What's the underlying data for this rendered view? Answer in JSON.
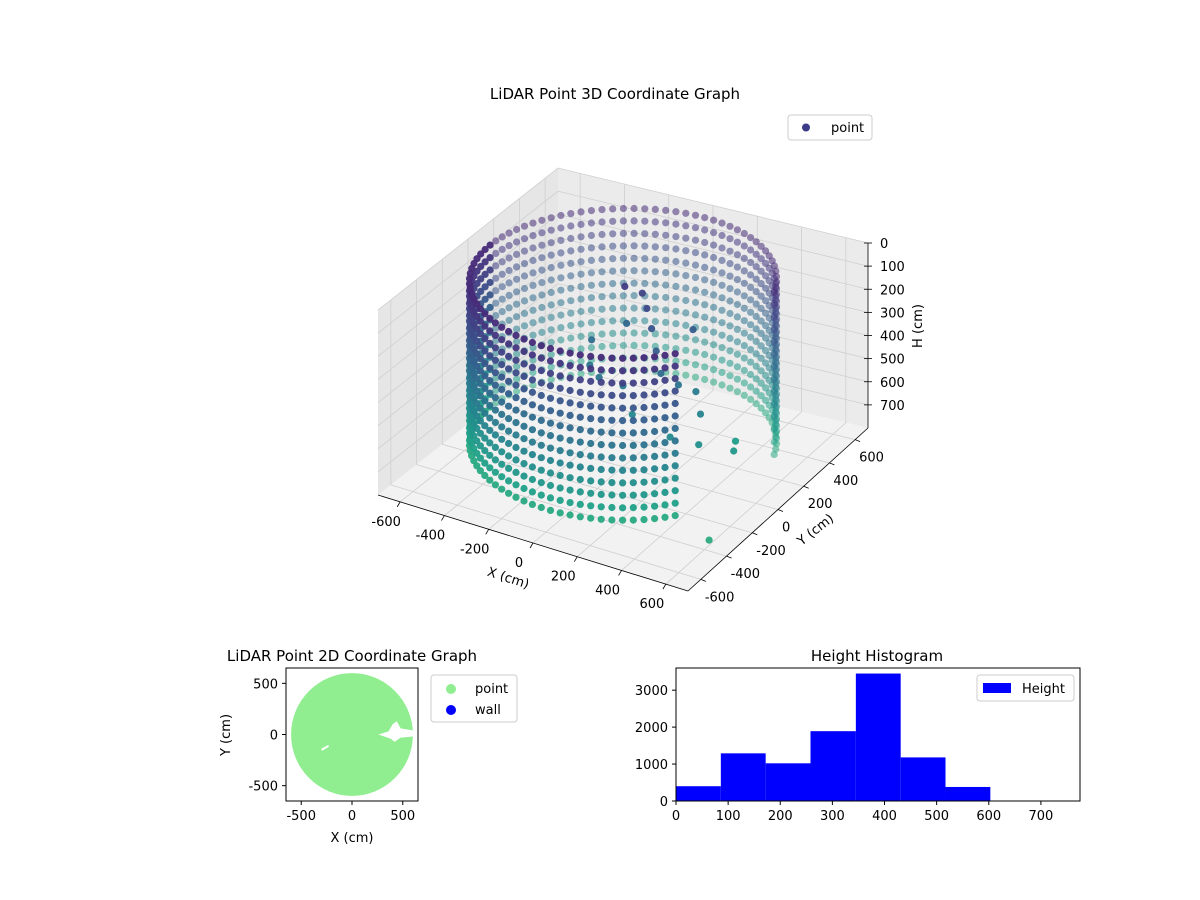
{
  "chart_data": [
    {
      "type": "scatter3d",
      "title": "LiDAR Point 3D Coordinate Graph",
      "xlabel": "X (cm)",
      "ylabel": "Y (cm)",
      "zlabel": "H (cm)",
      "xlim": [
        -700,
        700
      ],
      "ylim": [
        -700,
        700
      ],
      "zlim": [
        800,
        0
      ],
      "xticks": [
        -600,
        -400,
        -200,
        0,
        200,
        400,
        600
      ],
      "yticks": [
        -600,
        -400,
        -200,
        0,
        200,
        400,
        600
      ],
      "zticks": [
        0,
        100,
        200,
        300,
        400,
        500,
        600,
        700
      ],
      "legend": {
        "entries": [
          "point"
        ],
        "placement": "top-right"
      },
      "colormap": "viridis",
      "series": [
        {
          "name": "point",
          "color": "#3b3b87",
          "wall_ring": {
            "radius": 600,
            "center": [
              0,
              0
            ],
            "h_min": 0,
            "h_max": 700,
            "gap_angle_from_deg": -40,
            "gap_angle_to_deg": 20
          },
          "interior_points": [
            {
              "x": -50,
              "y": 100,
              "h": 80
            },
            {
              "x": 0,
              "y": 150,
              "h": 120
            },
            {
              "x": 50,
              "y": 100,
              "h": 150
            },
            {
              "x": 100,
              "y": 50,
              "h": 200
            },
            {
              "x": 150,
              "y": 0,
              "h": 260
            },
            {
              "x": 200,
              "y": -50,
              "h": 320
            },
            {
              "x": 250,
              "y": 0,
              "h": 380
            },
            {
              "x": 300,
              "y": 50,
              "h": 420
            },
            {
              "x": 350,
              "y": 0,
              "h": 480
            },
            {
              "x": -100,
              "y": 200,
              "h": 300
            },
            {
              "x": -200,
              "y": 100,
              "h": 350
            },
            {
              "x": -150,
              "y": 0,
              "h": 400
            },
            {
              "x": 0,
              "y": 0,
              "h": 450
            },
            {
              "x": 100,
              "y": -100,
              "h": 500
            },
            {
              "x": 400,
              "y": -100,
              "h": 550
            },
            {
              "x": 500,
              "y": 0,
              "h": 600
            },
            {
              "x": 450,
              "y": 100,
              "h": 620
            },
            {
              "x": 200,
              "y": 200,
              "h": 250
            },
            {
              "x": -50,
              "y": -100,
              "h": 380
            },
            {
              "x": 300,
              "y": -150,
              "h": 520
            },
            {
              "x": 650,
              "y": -450,
              "h": 720
            }
          ]
        }
      ]
    },
    {
      "type": "scatter",
      "title": "LiDAR Point 2D Coordinate Graph",
      "xlabel": "X (cm)",
      "ylabel": "Y (cm)",
      "xlim": [
        -650,
        650
      ],
      "ylim": [
        -650,
        650
      ],
      "xticks": [
        -500,
        0,
        500
      ],
      "yticks": [
        -500,
        0,
        500
      ],
      "legend": {
        "entries": [
          "point",
          "wall"
        ],
        "placement": "outside-right"
      },
      "series": [
        {
          "name": "point",
          "color": "#90ee90",
          "disk": {
            "center": [
              0,
              0
            ],
            "radius": 600
          }
        },
        {
          "name": "wall",
          "color": "#0000ff"
        }
      ],
      "holes": [
        {
          "points": [
            [
              260,
              0
            ],
            [
              380,
              -40
            ],
            [
              420,
              -70
            ],
            [
              480,
              -30
            ],
            [
              600,
              -20
            ],
            [
              600,
              40
            ],
            [
              480,
              60
            ],
            [
              440,
              130
            ],
            [
              400,
              100
            ],
            [
              360,
              30
            ]
          ]
        }
      ]
    },
    {
      "type": "bar",
      "title": "Height Histogram",
      "xlim": [
        0,
        775
      ],
      "ylim": [
        0,
        3600
      ],
      "xticks": [
        0,
        100,
        200,
        300,
        400,
        500,
        600,
        700
      ],
      "yticks": [
        0,
        1000,
        2000,
        3000
      ],
      "legend": {
        "entries": [
          "Height"
        ],
        "placement": "top-right"
      },
      "color": "#0000ff",
      "bin_edges": [
        0,
        86,
        172,
        258,
        345,
        431,
        517,
        603,
        689,
        775
      ],
      "series": [
        {
          "name": "Height",
          "values": [
            400,
            1290,
            1020,
            1890,
            3450,
            1180,
            380,
            0,
            0
          ]
        }
      ]
    }
  ]
}
